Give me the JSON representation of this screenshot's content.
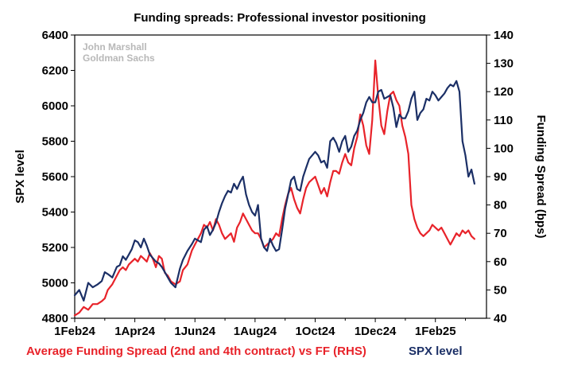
{
  "chart_data": {
    "type": "line",
    "title": "Funding spreads: Professional investor positioning",
    "watermark": [
      "John Marshall",
      "Goldman Sachs"
    ],
    "x_tick_labels": [
      "1Feb24",
      "1Apr24",
      "1Jun24",
      "1Aug24",
      "1Oct24",
      "1Dec24",
      "1Feb25"
    ],
    "y_left": {
      "label": "SPX level",
      "min": 4800,
      "max": 6400,
      "ticks": [
        4800,
        5000,
        5200,
        5400,
        5600,
        5800,
        6000,
        6200,
        6400
      ]
    },
    "y_right": {
      "label": "Funding Spread (bps)",
      "min": 40,
      "max": 140,
      "ticks": [
        40,
        50,
        60,
        70,
        80,
        90,
        100,
        110,
        120,
        130,
        140
      ]
    },
    "x_range_months": [
      0,
      13.7
    ],
    "series": [
      {
        "name": "SPX level",
        "axis": "left",
        "color": "#1b2f66",
        "x": [
          0,
          0.15,
          0.3,
          0.45,
          0.6,
          0.75,
          0.9,
          1.0,
          1.1,
          1.25,
          1.4,
          1.5,
          1.6,
          1.7,
          1.8,
          1.9,
          2.0,
          2.1,
          2.2,
          2.3,
          2.4,
          2.5,
          2.6,
          2.7,
          2.8,
          2.9,
          3.0,
          3.1,
          3.2,
          3.35,
          3.5,
          3.6,
          3.75,
          3.9,
          4.0,
          4.1,
          4.2,
          4.3,
          4.4,
          4.5,
          4.6,
          4.7,
          4.8,
          4.9,
          5.0,
          5.1,
          5.2,
          5.3,
          5.4,
          5.5,
          5.6,
          5.7,
          5.8,
          5.9,
          6.0,
          6.1,
          6.2,
          6.3,
          6.4,
          6.5,
          6.6,
          6.7,
          6.8,
          6.9,
          7.0,
          7.1,
          7.2,
          7.3,
          7.4,
          7.5,
          7.6,
          7.7,
          7.8,
          7.9,
          8.0,
          8.1,
          8.2,
          8.3,
          8.4,
          8.5,
          8.6,
          8.7,
          8.8,
          8.9,
          9.0,
          9.1,
          9.2,
          9.3,
          9.4,
          9.5,
          9.6,
          9.7,
          9.8,
          9.9,
          10.0,
          10.1,
          10.2,
          10.3,
          10.4,
          10.5,
          10.6,
          10.7,
          10.8,
          10.9,
          11.0,
          11.1,
          11.2,
          11.3,
          11.4,
          11.5,
          11.6,
          11.7,
          11.8,
          11.9,
          12.0,
          12.1,
          12.2,
          12.3,
          12.4,
          12.5,
          12.6,
          12.7,
          12.8,
          12.9,
          13.0,
          13.1,
          13.2,
          13.3
        ],
        "y": [
          4930,
          4960,
          4900,
          5000,
          4975,
          4990,
          5010,
          5060,
          5050,
          5030,
          5090,
          5100,
          5150,
          5130,
          5160,
          5190,
          5240,
          5230,
          5200,
          5250,
          5210,
          5160,
          5140,
          5120,
          5110,
          5090,
          5060,
          5030,
          5000,
          4975,
          5080,
          5130,
          5180,
          5220,
          5250,
          5240,
          5230,
          5300,
          5320,
          5270,
          5300,
          5340,
          5400,
          5450,
          5490,
          5520,
          5510,
          5560,
          5530,
          5570,
          5600,
          5500,
          5440,
          5400,
          5380,
          5440,
          5250,
          5200,
          5180,
          5250,
          5210,
          5180,
          5190,
          5300,
          5420,
          5500,
          5580,
          5600,
          5530,
          5520,
          5600,
          5650,
          5700,
          5720,
          5740,
          5720,
          5680,
          5690,
          5650,
          5800,
          5820,
          5790,
          5740,
          5800,
          5830,
          5740,
          5770,
          5830,
          5860,
          5920,
          5960,
          6020,
          6050,
          6020,
          6020,
          6080,
          6090,
          6040,
          6050,
          6060,
          5990,
          5880,
          5950,
          5930,
          5930,
          5970,
          6040,
          6080,
          5920,
          5960,
          5980,
          6040,
          6030,
          6080,
          6060,
          6030,
          6050,
          6070,
          6100,
          6120,
          6110,
          6140,
          6080,
          5800,
          5720,
          5600,
          5640,
          5560
        ]
      },
      {
        "name": "Average Funding Spread (2nd and 4th contract) vs FF (RHS)",
        "axis": "right",
        "color": "#e8232a",
        "x": [
          0,
          0.15,
          0.3,
          0.45,
          0.6,
          0.75,
          0.9,
          1.0,
          1.1,
          1.25,
          1.4,
          1.5,
          1.6,
          1.7,
          1.8,
          1.9,
          2.0,
          2.1,
          2.2,
          2.3,
          2.4,
          2.5,
          2.6,
          2.7,
          2.8,
          2.9,
          3.0,
          3.1,
          3.2,
          3.35,
          3.5,
          3.6,
          3.75,
          3.9,
          4.0,
          4.1,
          4.2,
          4.3,
          4.4,
          4.5,
          4.6,
          4.7,
          4.8,
          4.9,
          5.0,
          5.1,
          5.2,
          5.3,
          5.4,
          5.5,
          5.6,
          5.7,
          5.8,
          5.9,
          6.0,
          6.1,
          6.2,
          6.3,
          6.4,
          6.5,
          6.6,
          6.7,
          6.8,
          6.9,
          7.0,
          7.1,
          7.2,
          7.3,
          7.4,
          7.5,
          7.6,
          7.7,
          7.8,
          7.9,
          8.0,
          8.1,
          8.2,
          8.3,
          8.4,
          8.5,
          8.6,
          8.7,
          8.8,
          8.9,
          9.0,
          9.1,
          9.2,
          9.3,
          9.4,
          9.5,
          9.6,
          9.7,
          9.8,
          9.9,
          10.0,
          10.1,
          10.2,
          10.3,
          10.4,
          10.5,
          10.6,
          10.7,
          10.8,
          10.9,
          11.0,
          11.1,
          11.2,
          11.3,
          11.4,
          11.5,
          11.6,
          11.7,
          11.8,
          11.9,
          12.0,
          12.1,
          12.2,
          12.3,
          12.4,
          12.5,
          12.6,
          12.7,
          12.8,
          12.9,
          13.0,
          13.1,
          13.2,
          13.3
        ],
        "y": [
          41,
          42,
          44,
          43,
          45,
          45,
          46,
          47,
          50,
          52,
          55,
          57,
          58,
          57,
          59,
          60,
          61,
          60,
          62,
          61,
          60,
          63,
          61,
          58,
          62,
          61,
          56,
          55,
          53,
          52,
          53,
          57,
          59,
          64,
          66,
          68,
          70,
          73,
          72,
          74,
          71,
          75,
          73,
          70,
          68,
          69,
          70,
          67,
          72,
          74,
          77,
          75,
          73,
          71,
          70,
          70,
          68,
          65,
          66,
          67,
          68,
          70,
          69,
          75,
          80,
          84,
          86,
          82,
          79,
          77,
          82,
          86,
          88,
          89,
          90,
          87,
          84,
          86,
          83,
          88,
          92,
          92,
          91,
          95,
          98,
          95,
          94,
          100,
          104,
          112,
          108,
          101,
          98,
          110,
          131,
          118,
          108,
          105,
          113,
          119,
          120,
          117,
          115,
          108,
          104,
          98,
          80,
          75,
          72,
          70,
          69,
          70,
          71,
          73,
          72,
          71,
          72,
          70,
          68,
          66,
          68,
          70,
          69,
          71,
          70,
          71,
          69,
          68
        ]
      }
    ],
    "legend": [
      "Average Funding Spread (2nd and 4th contract) vs FF (RHS)",
      "SPX level"
    ]
  }
}
